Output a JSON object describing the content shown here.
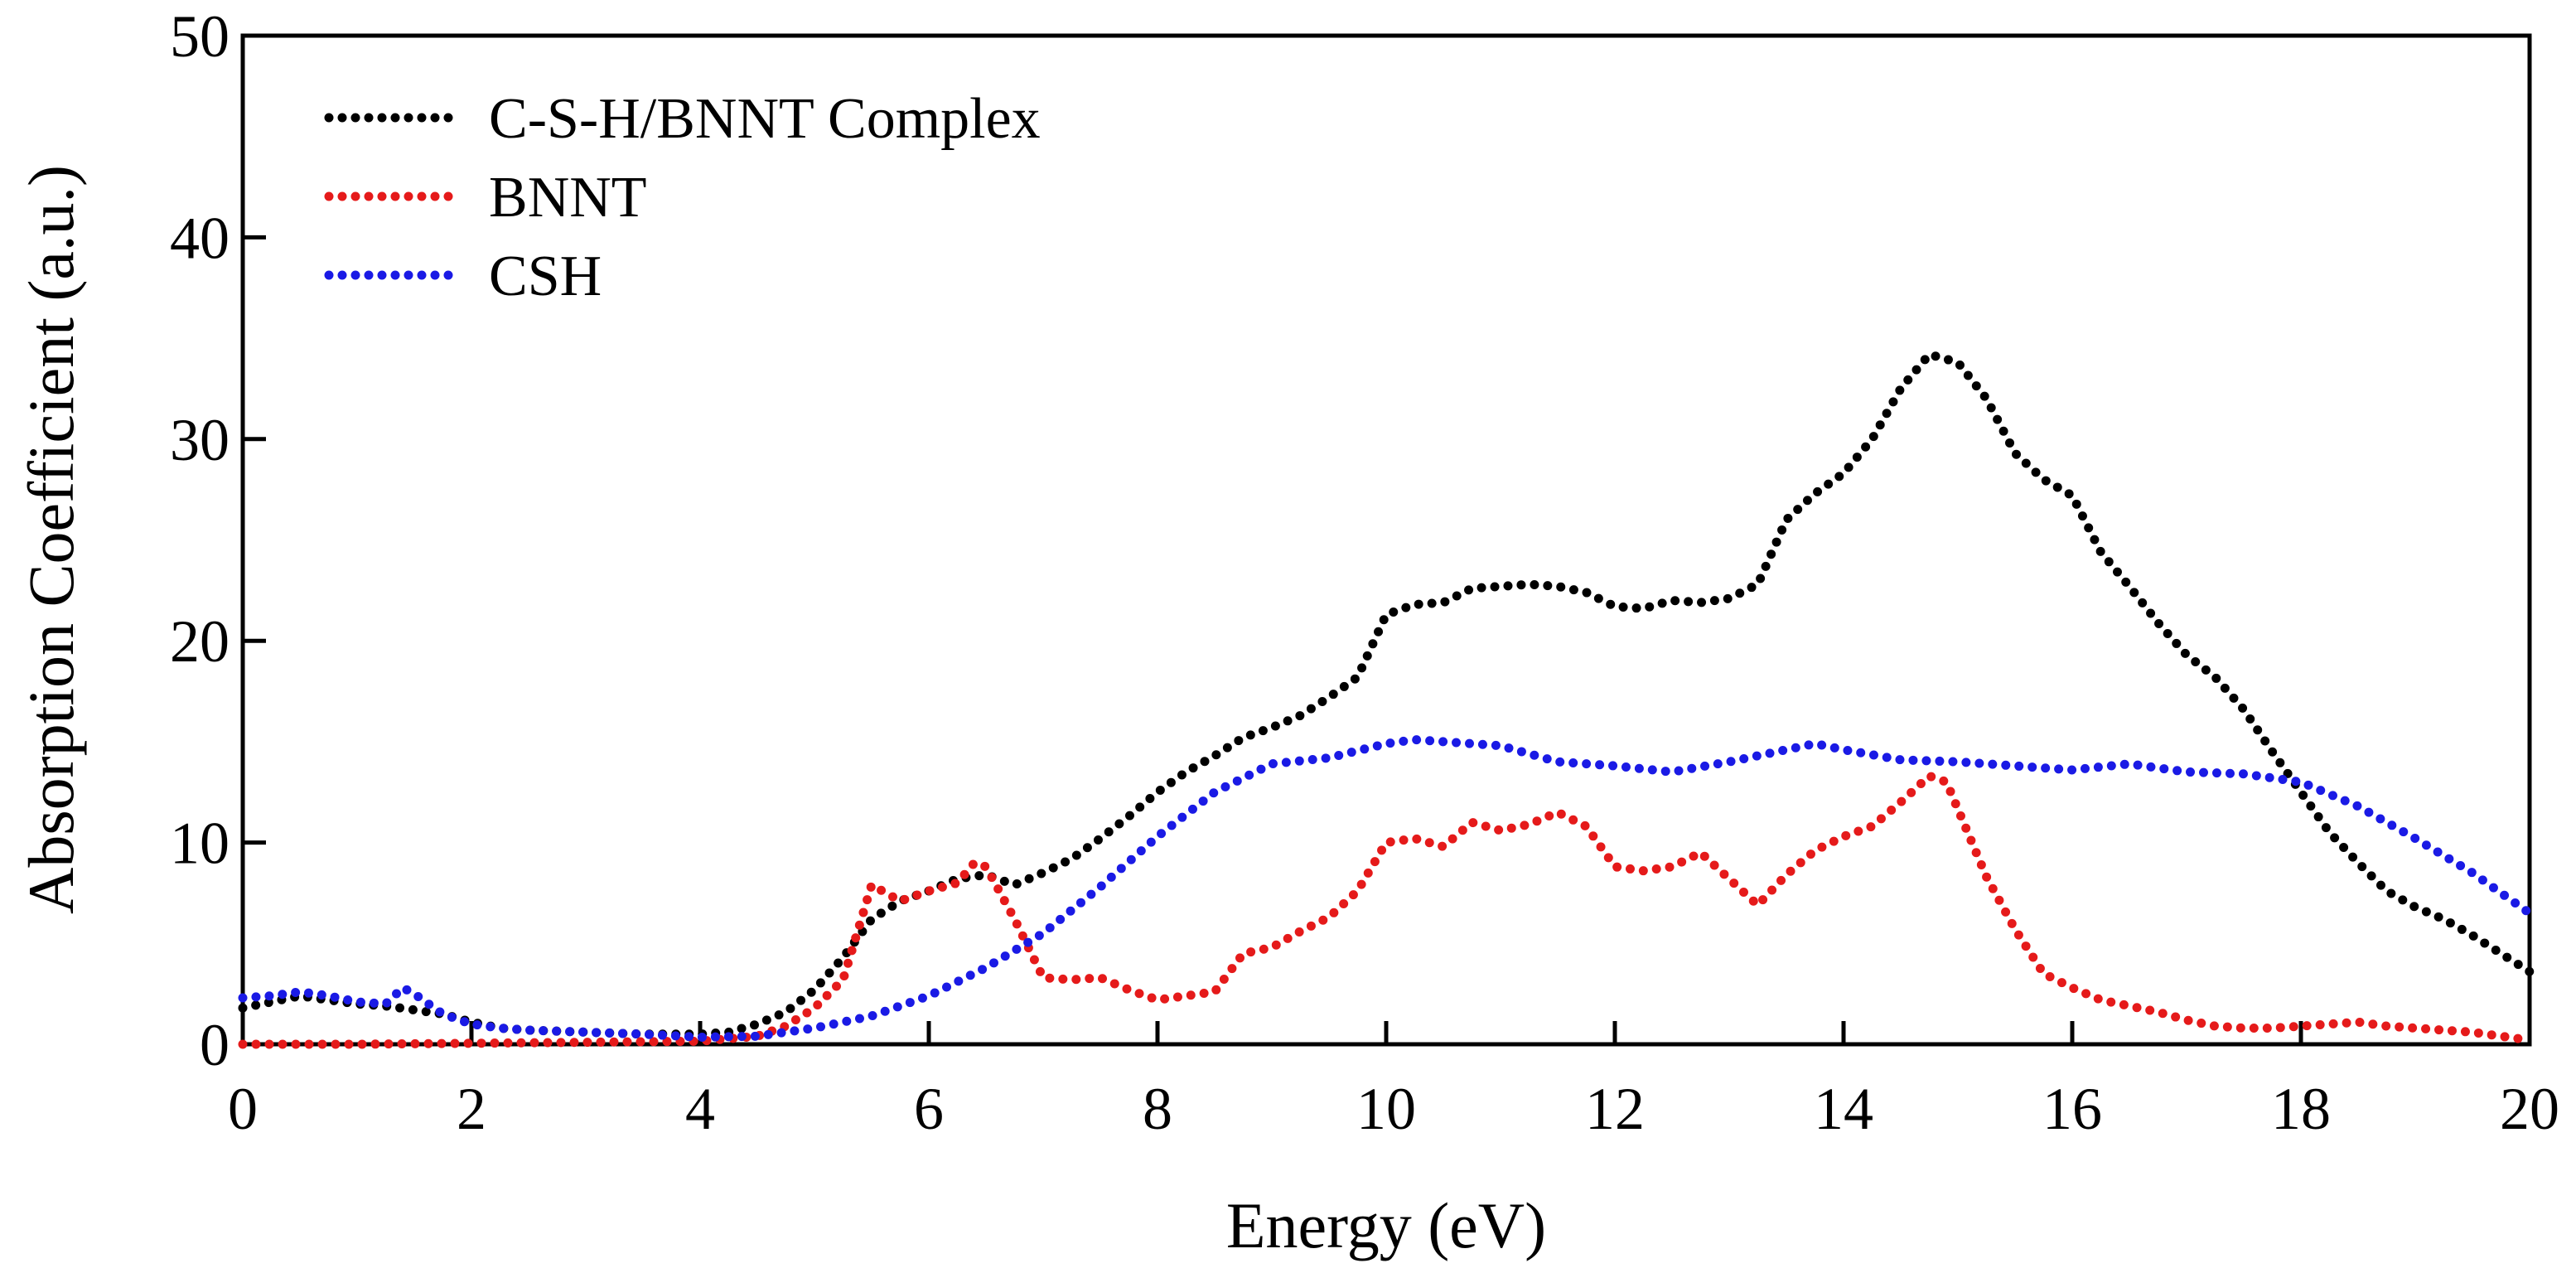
{
  "chart_data": {
    "type": "line",
    "style": "dotted",
    "xlabel": "Energy (eV)",
    "ylabel": "Absorption Coefficient (a.u.)",
    "xlim": [
      0,
      20
    ],
    "ylim": [
      0,
      50
    ],
    "xticks": [
      0,
      2,
      4,
      6,
      8,
      10,
      12,
      14,
      16,
      18,
      20
    ],
    "yticks": [
      0,
      10,
      20,
      30,
      40,
      50
    ],
    "grid": false,
    "legend_position": "top-left",
    "series": [
      {
        "name": "C-S-H/BNNT Complex",
        "color": "#000000",
        "points": [
          [
            0,
            1.8
          ],
          [
            0.25,
            2.1
          ],
          [
            0.5,
            2.4
          ],
          [
            0.75,
            2.2
          ],
          [
            1,
            2.0
          ],
          [
            1.25,
            1.9
          ],
          [
            1.5,
            1.7
          ],
          [
            1.75,
            1.5
          ],
          [
            2,
            1.1
          ],
          [
            2.25,
            0.8
          ],
          [
            2.5,
            0.7
          ],
          [
            3,
            0.6
          ],
          [
            3.5,
            0.5
          ],
          [
            4,
            0.5
          ],
          [
            4.25,
            0.6
          ],
          [
            4.5,
            1.0
          ],
          [
            4.75,
            1.6
          ],
          [
            5,
            2.7
          ],
          [
            5.25,
            4.3
          ],
          [
            5.5,
            6.2
          ],
          [
            5.75,
            7.1
          ],
          [
            6,
            7.6
          ],
          [
            6.25,
            8.2
          ],
          [
            6.5,
            8.4
          ],
          [
            6.75,
            7.9
          ],
          [
            7,
            8.5
          ],
          [
            7.25,
            9.2
          ],
          [
            7.5,
            10.2
          ],
          [
            7.75,
            11.3
          ],
          [
            8,
            12.5
          ],
          [
            8.25,
            13.5
          ],
          [
            8.5,
            14.3
          ],
          [
            8.75,
            15.2
          ],
          [
            9,
            15.7
          ],
          [
            9.25,
            16.3
          ],
          [
            9.5,
            17.2
          ],
          [
            9.75,
            18.2
          ],
          [
            10,
            21.3
          ],
          [
            10.25,
            21.8
          ],
          [
            10.5,
            21.9
          ],
          [
            10.75,
            22.6
          ],
          [
            11,
            22.7
          ],
          [
            11.25,
            22.8
          ],
          [
            11.5,
            22.7
          ],
          [
            11.75,
            22.4
          ],
          [
            12,
            21.7
          ],
          [
            12.25,
            21.6
          ],
          [
            12.5,
            22.0
          ],
          [
            12.75,
            21.9
          ],
          [
            13,
            22.1
          ],
          [
            13.25,
            22.8
          ],
          [
            13.5,
            26.0
          ],
          [
            13.75,
            27.3
          ],
          [
            14,
            28.3
          ],
          [
            14.25,
            30.0
          ],
          [
            14.5,
            32.5
          ],
          [
            14.75,
            34.2
          ],
          [
            15,
            33.8
          ],
          [
            15.25,
            32.0
          ],
          [
            15.5,
            29.3
          ],
          [
            15.75,
            28.0
          ],
          [
            16,
            27.2
          ],
          [
            16.25,
            24.4
          ],
          [
            16.5,
            22.7
          ],
          [
            16.75,
            20.9
          ],
          [
            17,
            19.3
          ],
          [
            17.25,
            18.2
          ],
          [
            17.5,
            16.6
          ],
          [
            17.75,
            14.5
          ],
          [
            18,
            12.5
          ],
          [
            18.25,
            10.5
          ],
          [
            18.5,
            9.0
          ],
          [
            18.75,
            7.6
          ],
          [
            19,
            6.8
          ],
          [
            19.25,
            6.2
          ],
          [
            19.5,
            5.4
          ],
          [
            19.75,
            4.5
          ],
          [
            20,
            3.6
          ]
        ]
      },
      {
        "name": "BNNT",
        "color": "#e51a1a",
        "points": [
          [
            0,
            0
          ],
          [
            1,
            0
          ],
          [
            2,
            0.05
          ],
          [
            3,
            0.1
          ],
          [
            4,
            0.15
          ],
          [
            4.5,
            0.4
          ],
          [
            4.75,
            0.9
          ],
          [
            5,
            1.8
          ],
          [
            5.25,
            3.2
          ],
          [
            5.5,
            7.9
          ],
          [
            5.75,
            7.1
          ],
          [
            6,
            7.6
          ],
          [
            6.25,
            8.0
          ],
          [
            6.4,
            9.0
          ],
          [
            6.5,
            8.8
          ],
          [
            6.75,
            6.2
          ],
          [
            7,
            3.3
          ],
          [
            7.25,
            3.2
          ],
          [
            7.5,
            3.3
          ],
          [
            7.75,
            2.7
          ],
          [
            8,
            2.2
          ],
          [
            8.25,
            2.4
          ],
          [
            8.5,
            2.6
          ],
          [
            8.75,
            4.5
          ],
          [
            9,
            4.8
          ],
          [
            9.25,
            5.6
          ],
          [
            9.5,
            6.3
          ],
          [
            9.75,
            7.6
          ],
          [
            10,
            10.0
          ],
          [
            10.25,
            10.2
          ],
          [
            10.5,
            9.8
          ],
          [
            10.75,
            11.0
          ],
          [
            11,
            10.6
          ],
          [
            11.25,
            10.9
          ],
          [
            11.5,
            11.5
          ],
          [
            11.75,
            10.8
          ],
          [
            12,
            8.8
          ],
          [
            12.25,
            8.6
          ],
          [
            12.5,
            8.8
          ],
          [
            12.75,
            9.5
          ],
          [
            13,
            8.2
          ],
          [
            13.25,
            6.9
          ],
          [
            13.5,
            8.4
          ],
          [
            13.75,
            9.6
          ],
          [
            14,
            10.3
          ],
          [
            14.25,
            10.8
          ],
          [
            14.5,
            12.0
          ],
          [
            14.75,
            13.3
          ],
          [
            14.9,
            13.0
          ],
          [
            15.25,
            8.3
          ],
          [
            15.5,
            5.7
          ],
          [
            15.75,
            3.5
          ],
          [
            16,
            2.8
          ],
          [
            16.25,
            2.2
          ],
          [
            16.5,
            1.9
          ],
          [
            16.75,
            1.6
          ],
          [
            17,
            1.2
          ],
          [
            17.25,
            0.9
          ],
          [
            17.5,
            0.8
          ],
          [
            17.75,
            0.8
          ],
          [
            18,
            0.9
          ],
          [
            18.25,
            1.0
          ],
          [
            18.5,
            1.1
          ],
          [
            18.75,
            0.9
          ],
          [
            19,
            0.8
          ],
          [
            19.25,
            0.7
          ],
          [
            19.5,
            0.6
          ],
          [
            19.75,
            0.4
          ],
          [
            20,
            0.2
          ]
        ]
      },
      {
        "name": "CSH",
        "color": "#1a1ae5",
        "points": [
          [
            0,
            2.3
          ],
          [
            0.25,
            2.4
          ],
          [
            0.5,
            2.6
          ],
          [
            0.75,
            2.4
          ],
          [
            1,
            2.1
          ],
          [
            1.25,
            2.0
          ],
          [
            1.4,
            2.8
          ],
          [
            1.5,
            2.5
          ],
          [
            1.75,
            1.5
          ],
          [
            2,
            1.0
          ],
          [
            2.25,
            0.8
          ],
          [
            2.5,
            0.7
          ],
          [
            3,
            0.6
          ],
          [
            3.5,
            0.5
          ],
          [
            4,
            0.35
          ],
          [
            4.5,
            0.4
          ],
          [
            5,
            0.8
          ],
          [
            5.5,
            1.4
          ],
          [
            6,
            2.4
          ],
          [
            6.5,
            3.8
          ],
          [
            7,
            5.5
          ],
          [
            7.5,
            7.8
          ],
          [
            8,
            10.3
          ],
          [
            8.5,
            12.5
          ],
          [
            9,
            13.9
          ],
          [
            9.5,
            14.2
          ],
          [
            10,
            14.9
          ],
          [
            10.25,
            15.1
          ],
          [
            10.5,
            15.0
          ],
          [
            11,
            14.8
          ],
          [
            11.5,
            14.0
          ],
          [
            12,
            13.8
          ],
          [
            12.5,
            13.5
          ],
          [
            13,
            14.0
          ],
          [
            13.5,
            14.6
          ],
          [
            13.75,
            14.9
          ],
          [
            14,
            14.6
          ],
          [
            14.5,
            14.1
          ],
          [
            15,
            14.0
          ],
          [
            15.5,
            13.8
          ],
          [
            16,
            13.6
          ],
          [
            16.5,
            13.9
          ],
          [
            17,
            13.5
          ],
          [
            17.5,
            13.4
          ],
          [
            18,
            13.0
          ],
          [
            18.5,
            11.8
          ],
          [
            19,
            10.2
          ],
          [
            19.5,
            8.5
          ],
          [
            20,
            6.5
          ]
        ]
      }
    ]
  }
}
